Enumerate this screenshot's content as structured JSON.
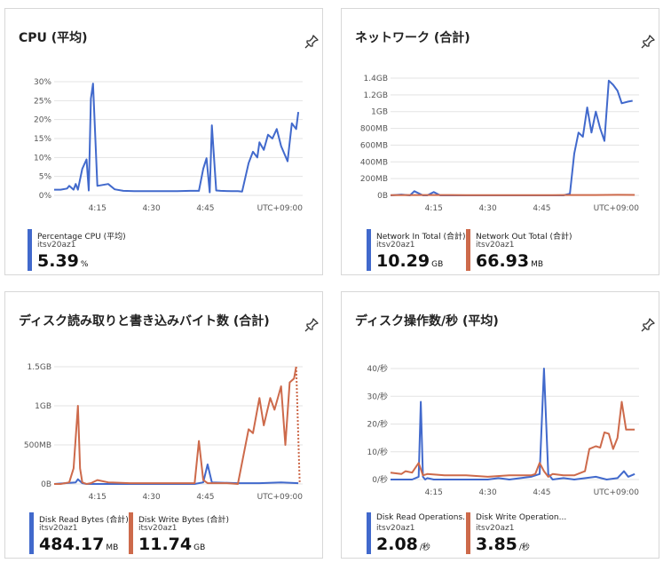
{
  "tiles": [
    {
      "title": "CPU (平均)",
      "legend": [
        {
          "name": "Percentage CPU (平均)",
          "sub": "itsv20az1",
          "value": "5.39",
          "unit": "%",
          "color": "#4169cc"
        }
      ]
    },
    {
      "title": "ネットワーク (合計)",
      "legend": [
        {
          "name": "Network In Total (合計)",
          "sub": "itsv20az1",
          "value": "10.29",
          "unit": "GB",
          "color": "#4169cc"
        },
        {
          "name": "Network Out Total (合計)",
          "sub": "itsv20az1",
          "value": "66.93",
          "unit": "MB",
          "color": "#cd6a4b"
        }
      ]
    },
    {
      "title": "ディスク読み取りと書き込みバイト数 (合計)",
      "legend": [
        {
          "name": "Disk Read Bytes (合計)",
          "sub": "itsv20az1",
          "value": "484.17",
          "unit": "MB",
          "color": "#4169cc"
        },
        {
          "name": "Disk Write Bytes (合計)",
          "sub": "itsv20az1",
          "value": "11.74",
          "unit": "GB",
          "color": "#cd6a4b"
        }
      ]
    },
    {
      "title": "ディスク操作数/秒 (平均)",
      "legend": [
        {
          "name": "Disk Read Operations...",
          "sub": "itsv20az1",
          "value": "2.08",
          "unit": "/秒",
          "color": "#4169cc"
        },
        {
          "name": "Disk Write Operation...",
          "sub": "itsv20az1",
          "value": "3.85",
          "unit": "/秒",
          "color": "#cd6a4b"
        }
      ]
    }
  ],
  "chart_data": [
    {
      "type": "line",
      "x_ticks": [
        "4:15",
        "4:30",
        "4:45"
      ],
      "timezone_label": "UTC+09:00",
      "y_ticks": [
        "0%",
        "5%",
        "10%",
        "15%",
        "20%",
        "25%",
        "30%"
      ],
      "ylim": [
        0,
        30
      ],
      "xlim": [
        4.05,
        5.2
      ],
      "series": [
        {
          "name": "Percentage CPU (平均)",
          "color": "#4169cc",
          "x": [
            4.05,
            4.08,
            4.11,
            4.12,
            4.14,
            4.15,
            4.16,
            4.18,
            4.2,
            4.21,
            4.22,
            4.23,
            4.25,
            4.3,
            4.33,
            4.37,
            4.42,
            4.47,
            4.52,
            4.57,
            4.62,
            4.68,
            4.72,
            4.74,
            4.755,
            4.77,
            4.78,
            4.8,
            4.82,
            4.87,
            4.9,
            4.92,
            4.95,
            4.97,
            4.99,
            5.0,
            5.02,
            5.04,
            5.06,
            5.08,
            5.1,
            5.13,
            5.15,
            5.17,
            5.18
          ],
          "y": [
            1.5,
            1.5,
            1.8,
            2.5,
            1.5,
            3,
            1.5,
            7,
            9.5,
            1.3,
            25.5,
            29.5,
            2.5,
            3,
            1.6,
            1.2,
            1.1,
            1.1,
            1.1,
            1.1,
            1.1,
            1.2,
            1.2,
            7,
            9.8,
            0.8,
            18.5,
            1.3,
            1.2,
            1.1,
            1.1,
            1,
            8.5,
            11.5,
            10,
            14,
            12,
            16,
            15,
            17.5,
            13,
            9,
            19,
            17.5,
            22
          ]
        }
      ]
    },
    {
      "type": "line",
      "x_ticks": [
        "4:15",
        "4:30",
        "4:45"
      ],
      "timezone_label": "UTC+09:00",
      "y_ticks": [
        "0B",
        "200MB",
        "400MB",
        "600MB",
        "800MB",
        "1GB",
        "1.2GB",
        "1.4GB"
      ],
      "ylim": [
        0,
        1.4
      ],
      "xlim": [
        4.05,
        5.2
      ],
      "series": [
        {
          "name": "Network In Total (合計)",
          "color": "#4169cc",
          "x": [
            4.05,
            4.1,
            4.14,
            4.16,
            4.2,
            4.22,
            4.25,
            4.28,
            4.3,
            4.5,
            4.7,
            4.85,
            4.88,
            4.9,
            4.92,
            4.94,
            4.96,
            4.98,
            5.0,
            5.02,
            5.04,
            5.06,
            5.08,
            5.1,
            5.12,
            5.15,
            5.17
          ],
          "y": [
            0,
            0.01,
            0,
            0.05,
            0,
            0,
            0.04,
            0,
            0,
            0,
            0,
            0,
            0.02,
            0.5,
            0.75,
            0.7,
            1.05,
            0.75,
            1.0,
            0.8,
            0.65,
            1.37,
            1.32,
            1.25,
            1.1,
            1.12,
            1.13
          ]
        },
        {
          "name": "Network Out Total (合計)",
          "color": "#cd6a4b",
          "x": [
            4.05,
            4.2,
            4.4,
            4.6,
            4.8,
            5.0,
            5.1,
            5.18
          ],
          "y": [
            0.003,
            0.004,
            0.003,
            0.003,
            0.003,
            0.004,
            0.006,
            0.005
          ]
        }
      ]
    },
    {
      "type": "line",
      "x_ticks": [
        "4:15",
        "4:30",
        "4:45"
      ],
      "timezone_label": "UTC+09:00",
      "y_ticks": [
        "0B",
        "500MB",
        "1GB",
        "1.5GB"
      ],
      "ylim": [
        0,
        1.5
      ],
      "xlim": [
        4.05,
        5.2
      ],
      "series": [
        {
          "name": "Disk Read Bytes (合計)",
          "color": "#4169cc",
          "x": [
            4.05,
            4.1,
            4.15,
            4.16,
            4.18,
            4.2,
            4.3,
            4.5,
            4.7,
            4.74,
            4.76,
            4.78,
            4.9,
            5.0,
            5.1,
            5.18
          ],
          "y": [
            0,
            0.01,
            0.02,
            0.06,
            0.01,
            0,
            0,
            0,
            0,
            0.02,
            0.25,
            0.02,
            0.01,
            0.01,
            0.02,
            0.01
          ]
        },
        {
          "name": "Disk Write Bytes (合計)",
          "color": "#cd6a4b",
          "x": [
            4.05,
            4.08,
            4.1,
            4.12,
            4.14,
            4.16,
            4.17,
            4.18,
            4.2,
            4.22,
            4.25,
            4.3,
            4.4,
            4.5,
            4.6,
            4.7,
            4.72,
            4.74,
            4.76,
            4.78,
            4.85,
            4.9,
            4.95,
            4.97,
            5.0,
            5.02,
            5.05,
            5.07,
            5.1,
            5.12,
            5.14,
            5.16,
            5.17
          ],
          "y": [
            0,
            0,
            0.01,
            0.02,
            0.2,
            1.0,
            0.2,
            0.02,
            0,
            0.01,
            0.05,
            0.02,
            0.01,
            0.01,
            0.01,
            0.01,
            0.55,
            0.05,
            0.01,
            0.01,
            0.01,
            0,
            0.7,
            0.65,
            1.1,
            0.75,
            1.1,
            0.95,
            1.25,
            0.5,
            1.3,
            1.35,
            1.5
          ]
        }
      ]
    },
    {
      "type": "line",
      "x_ticks": [
        "4:15",
        "4:30",
        "4:45"
      ],
      "timezone_label": "UTC+09:00",
      "y_ticks": [
        "0/秒",
        "10/秒",
        "20/秒",
        "30/秒",
        "40/秒"
      ],
      "ylim": [
        0,
        40
      ],
      "xlim": [
        4.05,
        5.2
      ],
      "series": [
        {
          "name": "Disk Read Operations...",
          "color": "#4169cc",
          "x": [
            4.05,
            4.1,
            4.15,
            4.18,
            4.19,
            4.2,
            4.21,
            4.22,
            4.25,
            4.3,
            4.4,
            4.5,
            4.55,
            4.6,
            4.7,
            4.74,
            4.76,
            4.78,
            4.8,
            4.85,
            4.9,
            5.0,
            5.05,
            5.1,
            5.13,
            5.15,
            5.18
          ],
          "y": [
            0,
            0,
            0,
            1,
            28,
            1,
            0,
            0.5,
            0,
            0,
            0,
            0,
            0.5,
            0,
            1,
            2,
            40,
            2,
            0,
            0.5,
            0,
            1,
            0,
            0.5,
            3,
            1,
            2
          ]
        },
        {
          "name": "Disk Write Operation...",
          "color": "#cd6a4b",
          "x": [
            4.05,
            4.1,
            4.12,
            4.15,
            4.18,
            4.2,
            4.22,
            4.3,
            4.4,
            4.5,
            4.6,
            4.7,
            4.72,
            4.74,
            4.76,
            4.78,
            4.8,
            4.85,
            4.9,
            4.95,
            4.97,
            5.0,
            5.02,
            5.04,
            5.06,
            5.08,
            5.1,
            5.12,
            5.14,
            5.16,
            5.18
          ],
          "y": [
            2.5,
            2,
            3,
            2.5,
            6,
            1.5,
            2,
            1.5,
            1.5,
            1,
            1.5,
            1.5,
            2,
            6,
            3,
            1,
            2,
            1.5,
            1.5,
            3,
            11,
            12,
            11.5,
            17,
            16.5,
            11,
            15,
            28,
            18,
            18,
            18
          ]
        }
      ]
    }
  ]
}
